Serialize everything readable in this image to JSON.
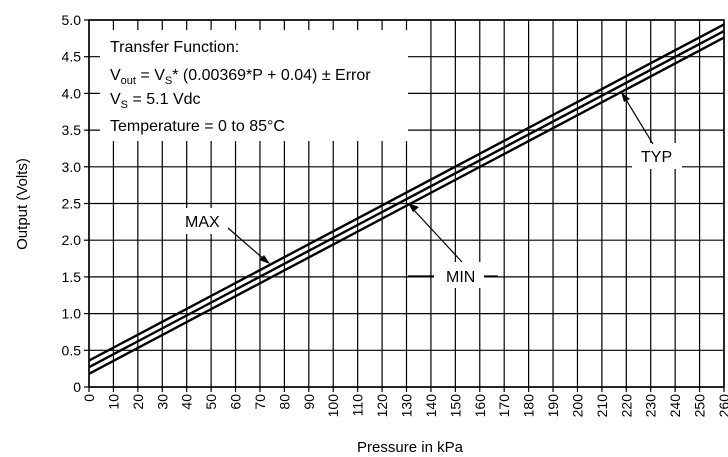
{
  "chart_data": {
    "type": "line",
    "xlabel": "Pressure in kPa",
    "ylabel": "Output (Volts)",
    "xlim": [
      0,
      260
    ],
    "ylim": [
      0,
      5.0
    ],
    "x_ticks": [
      "0",
      "10",
      "20",
      "30",
      "40",
      "50",
      "60",
      "70",
      "80",
      "90",
      "100",
      "110",
      "120",
      "130",
      "140",
      "150",
      "160",
      "170",
      "180",
      "190",
      "200",
      "210",
      "220",
      "230",
      "240",
      "250",
      "260"
    ],
    "y_ticks": [
      "0",
      "0.5",
      "1.0",
      "1.5",
      "2.0",
      "2.5",
      "3.0",
      "3.5",
      "4.0",
      "4.5",
      "5.0"
    ],
    "grid": true,
    "series": [
      {
        "name": "MAX",
        "x": [
          0,
          260
        ],
        "y": [
          0.36,
          4.94
        ]
      },
      {
        "name": "TYP",
        "x": [
          0,
          260
        ],
        "y": [
          0.27,
          4.85
        ]
      },
      {
        "name": "MIN",
        "x": [
          0,
          260
        ],
        "y": [
          0.18,
          4.76
        ]
      }
    ],
    "annotation": {
      "title": "Transfer Function:",
      "formula_v": "V",
      "formula_out": "out",
      "formula_eq": " = V",
      "formula_s": "S",
      "formula_rest": "* (0.00369*P + 0.04) ± Error",
      "vs_v": "V",
      "vs_s": "S",
      "vs_rest": " = 5.1 Vdc",
      "temperature": "Temperature = 0 to 85°C"
    },
    "callouts": [
      {
        "label": "MAX",
        "target_x": 70,
        "target_y": 1.68
      },
      {
        "label": "MIN",
        "target_x": 130,
        "target_y": 2.5
      },
      {
        "label": "TYP",
        "target_x": 220,
        "target_y": 4.06
      }
    ]
  }
}
